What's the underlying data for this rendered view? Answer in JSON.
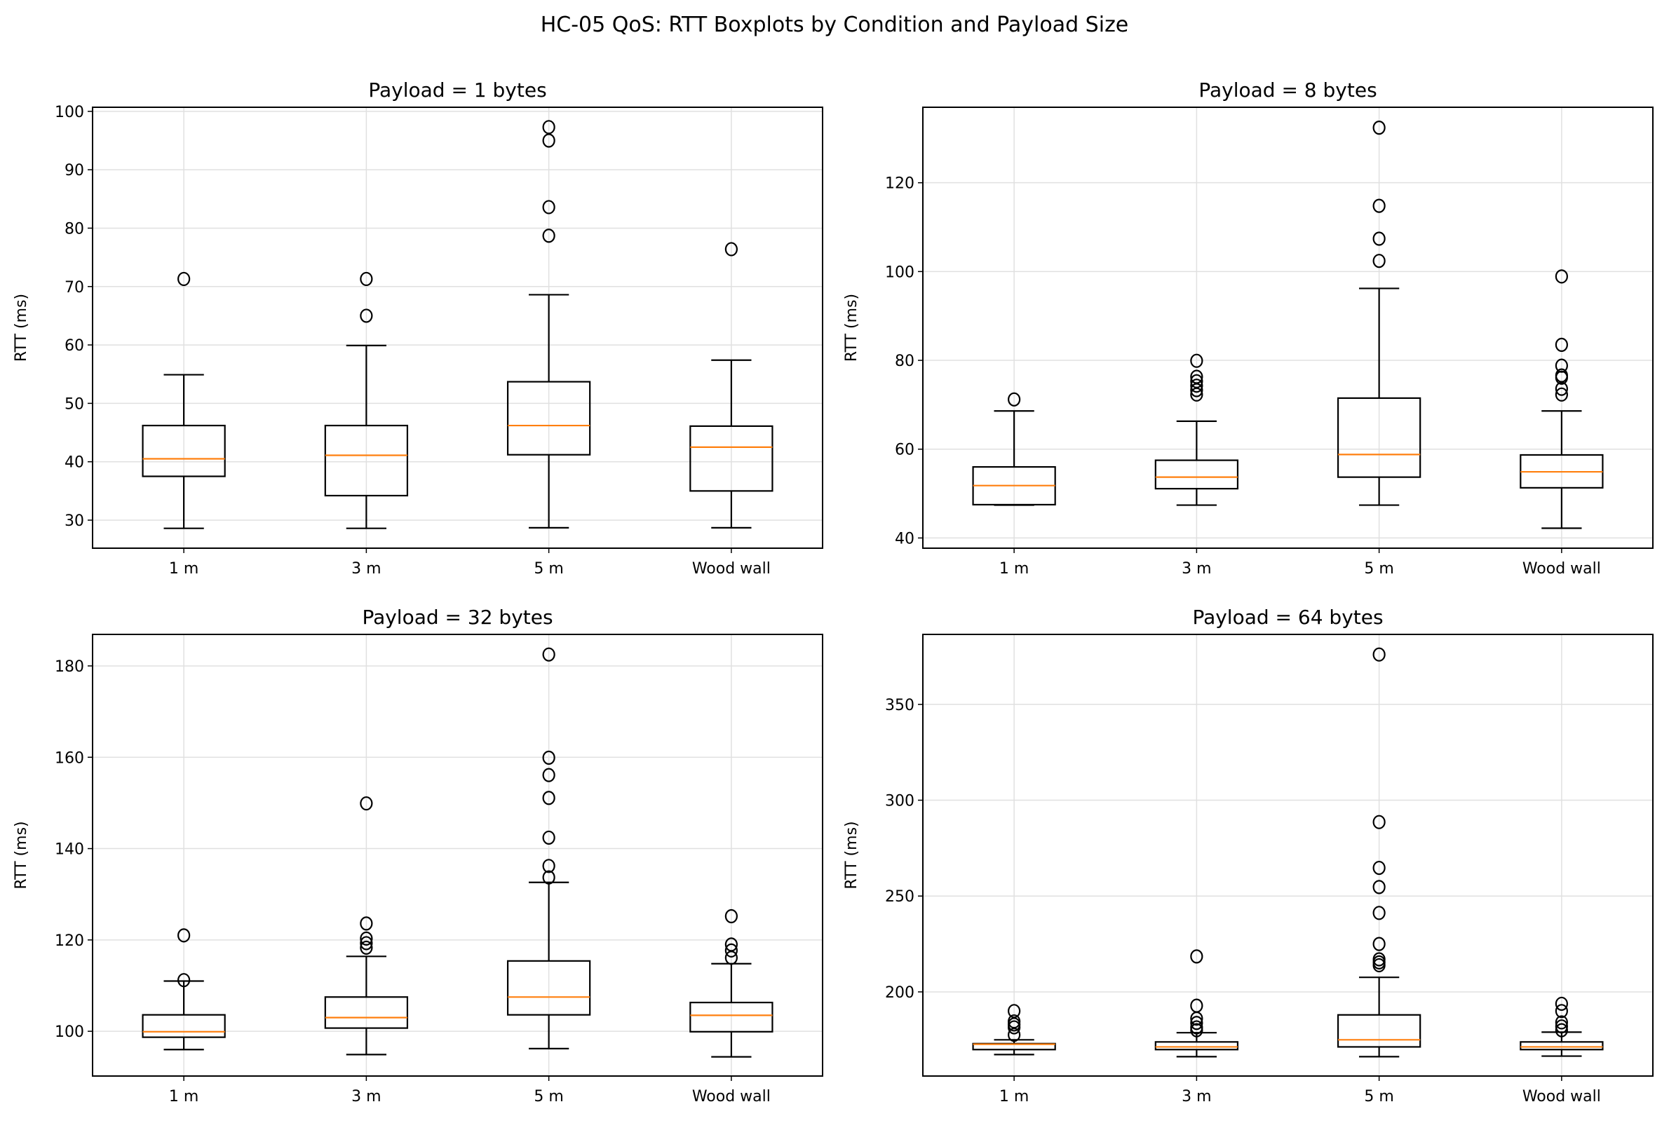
{
  "chart_data": {
    "suptitle": "HC-05 QoS: RTT Boxplots by Condition and Payload Size",
    "colors": {
      "box": "#000000",
      "median": "#ff7f0e",
      "grid": "#e0e0e0"
    },
    "grid": true,
    "panels": [
      {
        "type": "boxplot",
        "title": "Payload = 1 bytes",
        "ylabel": "RTT (ms)",
        "categories": [
          "1 m",
          "3 m",
          "5 m",
          "Wood wall"
        ],
        "ylim": [
          25.2,
          100.7
        ],
        "yticks": [
          30,
          40,
          50,
          60,
          70,
          80,
          90,
          100
        ],
        "boxes": [
          {
            "whislo": 28.6,
            "q1": 37.5,
            "med": 40.5,
            "q3": 46.2,
            "whishi": 54.9,
            "fliers": [
              71.3
            ]
          },
          {
            "whislo": 28.6,
            "q1": 34.2,
            "med": 41.1,
            "q3": 46.2,
            "whishi": 59.9,
            "fliers": [
              65.0,
              71.3
            ]
          },
          {
            "whislo": 28.7,
            "q1": 41.2,
            "med": 46.2,
            "q3": 53.7,
            "whishi": 68.6,
            "fliers": [
              78.7,
              83.6,
              95.0,
              97.3
            ]
          },
          {
            "whislo": 28.7,
            "q1": 35.0,
            "med": 42.5,
            "q3": 46.1,
            "whishi": 57.4,
            "fliers": [
              76.4
            ]
          }
        ]
      },
      {
        "type": "boxplot",
        "title": "Payload = 8 bytes",
        "ylabel": "RTT (ms)",
        "categories": [
          "1 m",
          "3 m",
          "5 m",
          "Wood wall"
        ],
        "ylim": [
          37.7,
          137.0
        ],
        "yticks": [
          40,
          60,
          80,
          100,
          120
        ],
        "boxes": [
          {
            "whislo": 47.4,
            "q1": 47.5,
            "med": 51.8,
            "q3": 56.0,
            "whishi": 68.6,
            "fliers": [
              71.2
            ]
          },
          {
            "whislo": 47.4,
            "q1": 51.1,
            "med": 53.7,
            "q3": 57.5,
            "whishi": 66.3,
            "fliers": [
              72.3,
              73.3,
              74.3,
              75.3,
              76.3,
              79.9
            ]
          },
          {
            "whislo": 47.4,
            "q1": 53.7,
            "med": 58.8,
            "q3": 71.5,
            "whishi": 96.2,
            "fliers": [
              102.4,
              107.4,
              114.8,
              132.4
            ]
          },
          {
            "whislo": 42.2,
            "q1": 51.3,
            "med": 54.9,
            "q3": 58.7,
            "whishi": 68.6,
            "fliers": [
              72.3,
              73.6,
              76.1,
              76.6,
              78.8,
              83.5,
              98.9
            ]
          }
        ]
      },
      {
        "type": "boxplot",
        "title": "Payload = 32 bytes",
        "ylabel": "RTT (ms)",
        "categories": [
          "1 m",
          "3 m",
          "5 m",
          "Wood wall"
        ],
        "ylim": [
          90.2,
          186.9
        ],
        "yticks": [
          100,
          120,
          140,
          160,
          180
        ],
        "boxes": [
          {
            "whislo": 96.0,
            "q1": 98.7,
            "med": 99.9,
            "q3": 103.6,
            "whishi": 111.0,
            "fliers": [
              111.2,
              121.0
            ]
          },
          {
            "whislo": 94.9,
            "q1": 100.7,
            "med": 103.0,
            "q3": 107.5,
            "whishi": 116.4,
            "fliers": [
              118.3,
              119.3,
              120.3,
              123.6,
              149.9
            ]
          },
          {
            "whislo": 96.2,
            "q1": 103.6,
            "med": 107.5,
            "q3": 115.4,
            "whishi": 132.6,
            "fliers": [
              133.7,
              136.2,
              142.4,
              151.1,
              156.1,
              159.9,
              182.5
            ]
          },
          {
            "whislo": 94.4,
            "q1": 99.9,
            "med": 103.5,
            "q3": 106.3,
            "whishi": 114.8,
            "fliers": [
              116.1,
              117.7,
              119.0,
              125.2
            ]
          }
        ]
      },
      {
        "type": "boxplot",
        "title": "Payload = 64 bytes",
        "ylabel": "RTT (ms)",
        "categories": [
          "1 m",
          "3 m",
          "5 m",
          "Wood wall"
        ],
        "ylim": [
          156.1,
          386.5
        ],
        "yticks": [
          200,
          250,
          300,
          350
        ],
        "boxes": [
          {
            "whislo": 167.3,
            "q1": 169.9,
            "med": 172.7,
            "q3": 173.0,
            "whishi": 175.0,
            "fliers": [
              177.6,
              181.5,
              183.0,
              184.6,
              190.0
            ]
          },
          {
            "whislo": 166.2,
            "q1": 169.9,
            "med": 171.3,
            "q3": 173.9,
            "whishi": 178.7,
            "fliers": [
              180.0,
              181.5,
              183.8,
              186.1,
              192.8,
              218.5
            ]
          },
          {
            "whislo": 166.2,
            "q1": 171.3,
            "med": 175.0,
            "q3": 188.0,
            "whishi": 207.6,
            "fliers": [
              213.9,
              215.4,
              217.0,
              225.0,
              241.2,
              254.7,
              264.7,
              288.6,
              376.0
            ]
          },
          {
            "whislo": 166.5,
            "q1": 169.9,
            "med": 171.3,
            "q3": 173.9,
            "whishi": 179.0,
            "fliers": [
              180.0,
              182.0,
              184.1,
              190.0,
              193.8
            ]
          }
        ]
      }
    ]
  }
}
